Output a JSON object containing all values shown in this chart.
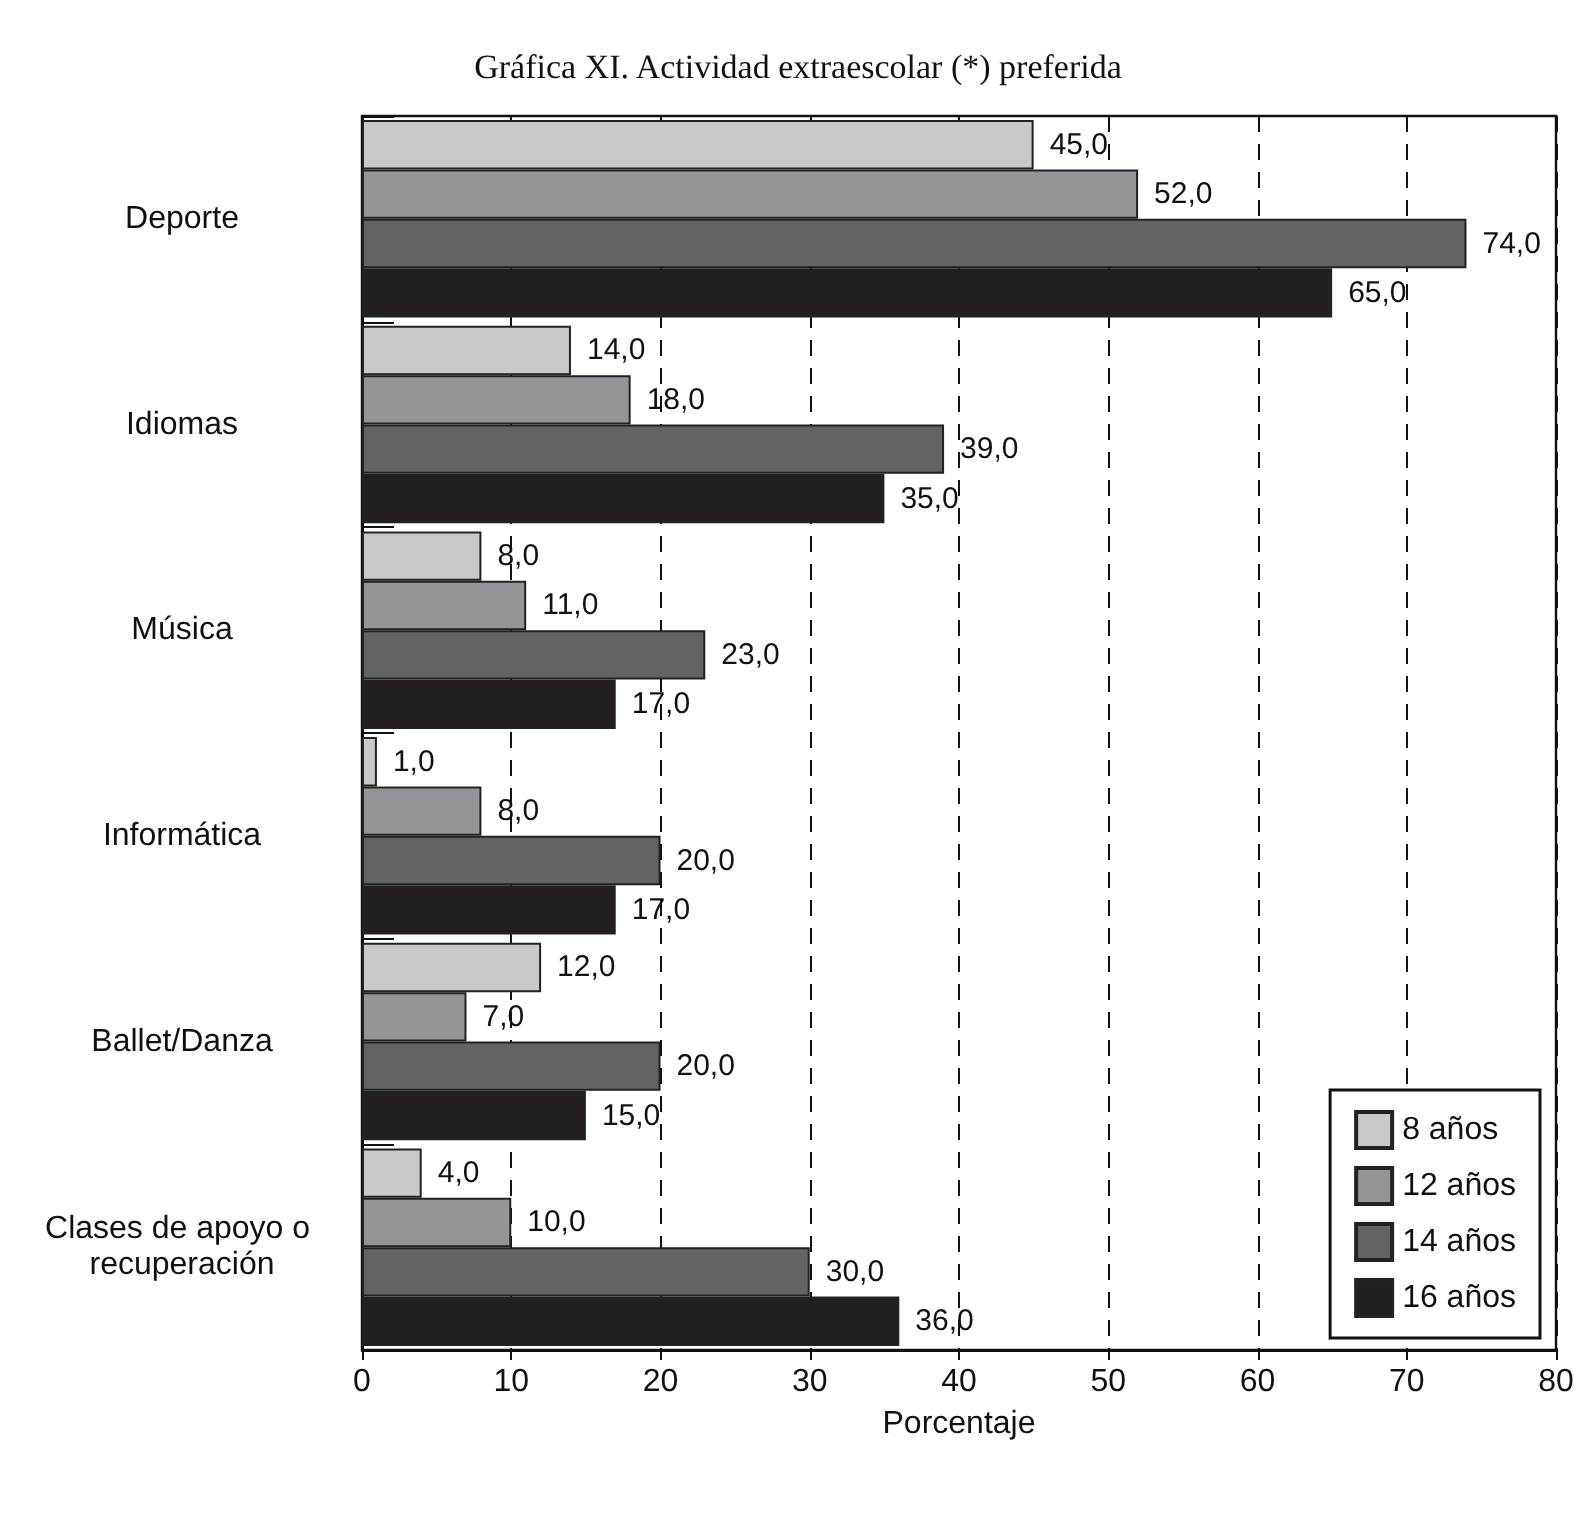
{
  "chart_data": {
    "type": "bar",
    "orientation": "horizontal",
    "title": "Gráfica XI. Actividad extraescolar (*) preferida",
    "xlabel": "Porcentaje",
    "categories": [
      "Deporte",
      "Idiomas",
      "Música",
      "Informática",
      "Ballet/Danza",
      "Clases de apoyo o recuperación"
    ],
    "series": [
      {
        "name": "8 años",
        "color": "#c8c9cb",
        "values": [
          45,
          14,
          8,
          1,
          12,
          4
        ],
        "value_labels": [
          "45,0",
          "14,0",
          "8,0",
          "1,0",
          "12,0",
          "4,0"
        ]
      },
      {
        "name": "12 años",
        "color": "#949598",
        "values": [
          52,
          18,
          11,
          8,
          7,
          10
        ],
        "value_labels": [
          "52,0",
          "18,0",
          "11,0",
          "8,0",
          "7,0",
          "10,0"
        ]
      },
      {
        "name": "14 años",
        "color": "#636365",
        "values": [
          74,
          39,
          23,
          20,
          20,
          30
        ],
        "value_labels": [
          "74,0",
          "39,0",
          "23,0",
          "20,0",
          "20,0",
          "30,0"
        ]
      },
      {
        "name": "16 años",
        "color": "#231f20",
        "values": [
          65,
          35,
          17,
          17,
          15,
          36
        ],
        "value_labels": [
          "65,0",
          "35,0",
          "17,0",
          "17,0",
          "15,0",
          "36,0"
        ]
      }
    ],
    "xlim": [
      0,
      80
    ],
    "xticks": [
      0,
      10,
      20,
      30,
      40,
      50,
      60,
      70,
      80
    ],
    "grid": "x",
    "legend": "bottom right"
  }
}
